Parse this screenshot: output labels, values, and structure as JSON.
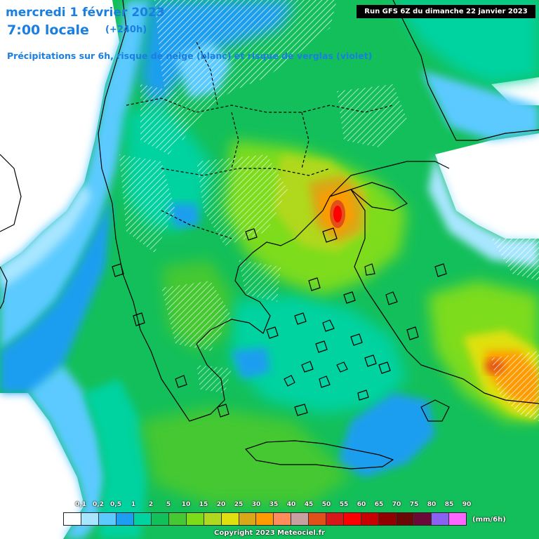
{
  "header": {
    "title": "mercredi 1 février 2023",
    "local_time": "7:00 locale",
    "lead_time": "(+240h)",
    "description": "Précipitations sur 6h, risque de neige (blanc) et risque de verglas (violet)",
    "run": "Run GFS 6Z du dimanche 22 janvier 2023"
  },
  "legend": {
    "labels": [
      "0,1",
      "0,2",
      "0,5",
      "1",
      "2",
      "5",
      "10",
      "15",
      "20",
      "25",
      "30",
      "35",
      "40",
      "45",
      "50",
      "55",
      "60",
      "65",
      "70",
      "75",
      "80",
      "85",
      "90"
    ],
    "colors": [
      "#ffffff",
      "#a8e6ff",
      "#5ccaff",
      "#1e9ef0",
      "#00d2a0",
      "#13bf5a",
      "#45c832",
      "#7ddc1a",
      "#b0d81e",
      "#e0e010",
      "#d8a818",
      "#ff9a00",
      "#ff8c5a",
      "#c8a0a0",
      "#e05018",
      "#d81818",
      "#ff0000",
      "#c80000",
      "#900000",
      "#6a0808",
      "#6a0838",
      "#8c60f0",
      "#ff66ff"
    ],
    "unit": "(mm/6h)"
  },
  "copyright": "Copyright 2023 Meteociel.fr",
  "colors": {
    "land_white": "#ffffff",
    "light_cyan": "#a8e6ff",
    "cyan": "#5ccaff",
    "blue": "#1e9ef0",
    "teal": "#00d2a0",
    "green": "#13bf5a",
    "lime": "#7ddc1a",
    "yellow_green": "#b0d81e",
    "gold": "#d8a818",
    "orange": "#ff9a00",
    "red": "#ff0000",
    "title_blue": "#1a7fe0"
  }
}
